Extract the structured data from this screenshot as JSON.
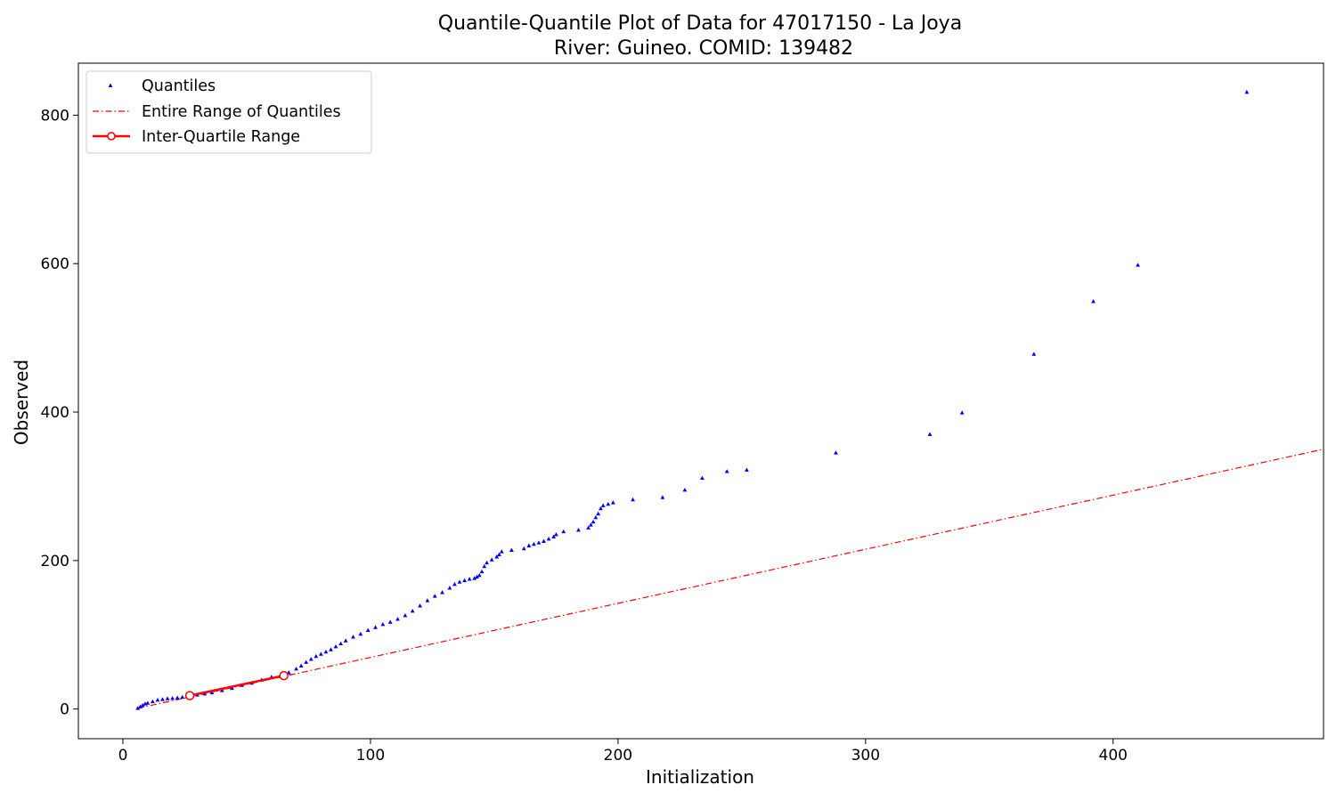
{
  "chart_data": {
    "type": "scatter",
    "title": "Quantile-Quantile Plot of Data for 47017150 - La Joya",
    "subtitle": "River: Guineo. COMID: 139482",
    "xlabel": "Initialization",
    "ylabel": "Observed",
    "xlim": [
      -18,
      485
    ],
    "ylim": [
      -40,
      870
    ],
    "xticks": [
      0,
      100,
      200,
      300,
      400,
      500
    ],
    "yticks": [
      0,
      200,
      400,
      600,
      800
    ],
    "grid": false,
    "legend_position": "top-left",
    "series": [
      {
        "name": "Quantiles",
        "kind": "points",
        "color": "#0000ff",
        "x": [
          6,
          7,
          8,
          9,
          10,
          12,
          14,
          16,
          18,
          20,
          22,
          24,
          26,
          28,
          30,
          33,
          36,
          40,
          44,
          48,
          52,
          56,
          60,
          64,
          67,
          70,
          72,
          74,
          76,
          78,
          80,
          82,
          84,
          86,
          88,
          90,
          93,
          96,
          99,
          102,
          105,
          108,
          111,
          114,
          117,
          120,
          123,
          126,
          129,
          132,
          134,
          136,
          138,
          140,
          142,
          143,
          144,
          145,
          146,
          147,
          149,
          151,
          152,
          153,
          157,
          162,
          164,
          166,
          168,
          170,
          172,
          174,
          175,
          178,
          184,
          188,
          189,
          190,
          191,
          192,
          193,
          194,
          196,
          198,
          206,
          218,
          227,
          234,
          244,
          252,
          288,
          326,
          339,
          368,
          392,
          410,
          454
        ],
        "y": [
          1,
          3,
          5,
          7,
          8,
          10,
          12,
          13,
          14,
          14.5,
          15,
          16,
          17,
          18,
          19,
          20.5,
          22,
          25,
          28,
          32,
          35,
          39,
          43,
          46,
          49,
          54,
          58,
          63,
          67,
          71,
          74,
          77,
          80,
          84,
          88,
          92,
          97,
          101,
          106,
          110,
          114,
          117,
          121,
          126,
          132,
          139,
          146,
          152,
          157,
          163,
          168,
          171,
          173,
          175,
          176,
          178,
          180,
          185,
          192,
          197,
          201,
          205,
          208,
          212,
          214,
          216,
          220,
          222,
          224,
          226,
          229,
          232,
          235,
          239,
          241,
          244,
          248,
          252,
          258,
          263,
          270,
          274,
          276,
          278,
          282,
          285,
          295,
          311,
          320,
          322,
          345,
          370,
          399,
          478,
          549,
          598,
          831
        ]
      },
      {
        "name": "Entire Range of Quantiles",
        "kind": "line",
        "color": "#ff0000",
        "x": [
          6,
          485
        ],
        "y": [
          1,
          350
        ]
      },
      {
        "name": "Inter-Quartile Range",
        "kind": "line-markers",
        "color": "#ff0000",
        "x": [
          27,
          65
        ],
        "y": [
          18,
          45
        ]
      }
    ]
  }
}
